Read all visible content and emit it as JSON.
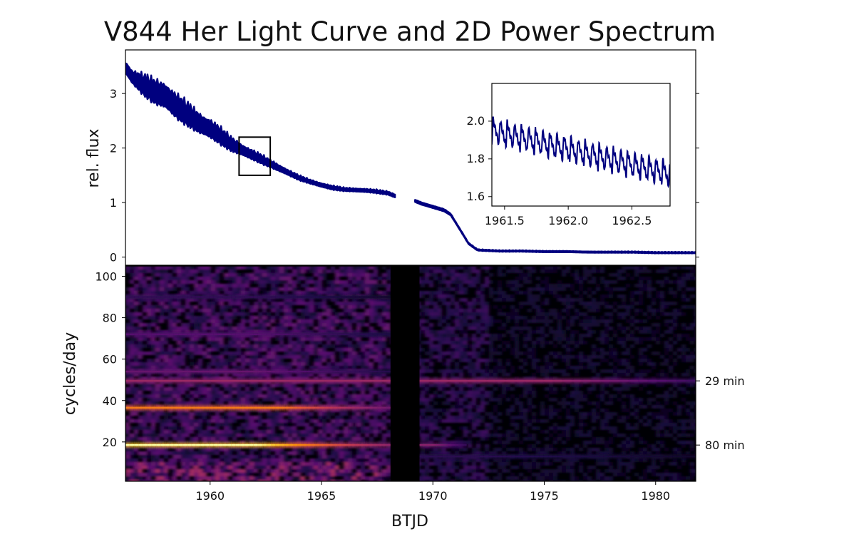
{
  "chart_data": [
    {
      "type": "line",
      "panel": "light-curve",
      "title": "V844 Her Light Curve and 2D Power Spectrum",
      "xlabel": "",
      "ylabel": "rel. flux",
      "xlim": [
        1956.2,
        1981.8
      ],
      "ylim": [
        -0.15,
        3.8
      ],
      "yticks": [
        0,
        1,
        2,
        3
      ],
      "series": [
        {
          "color": "#00007f",
          "x": [
            1956.2,
            1956.5,
            1957.0,
            1957.5,
            1958.0,
            1958.5,
            1959.0,
            1959.5,
            1960.0,
            1960.5,
            1961.0,
            1961.5,
            1962.0,
            1962.5,
            1963.0,
            1963.5,
            1964.0,
            1964.5,
            1965.0,
            1965.5,
            1966.0,
            1966.5,
            1967.0,
            1967.5,
            1968.0,
            1968.3,
            1969.2,
            1969.5,
            1970.0,
            1970.5,
            1970.8,
            1971.0,
            1971.3,
            1971.6,
            1972.0,
            1972.5,
            1973.0,
            1974.0,
            1975.0,
            1976.0,
            1977.0,
            1978.0,
            1979.0,
            1980.0,
            1981.0,
            1981.8
          ],
          "y": [
            3.48,
            3.3,
            3.15,
            3.02,
            2.95,
            2.75,
            2.6,
            2.45,
            2.35,
            2.2,
            2.05,
            1.95,
            1.85,
            1.75,
            1.65,
            1.55,
            1.45,
            1.38,
            1.32,
            1.27,
            1.24,
            1.23,
            1.22,
            1.2,
            1.17,
            1.12,
            1.03,
            0.98,
            0.92,
            0.86,
            0.78,
            0.65,
            0.45,
            0.25,
            0.13,
            0.12,
            0.11,
            0.11,
            0.1,
            0.1,
            0.09,
            0.09,
            0.09,
            0.08,
            0.08,
            0.08
          ],
          "band": [
            0.18,
            0.2,
            0.3,
            0.35,
            0.38,
            0.36,
            0.33,
            0.3,
            0.28,
            0.24,
            0.2,
            0.16,
            0.14,
            0.12,
            0.1,
            0.08,
            0.07,
            0.06,
            0.06,
            0.06,
            0.05,
            0.05,
            0.05,
            0.05,
            0.05,
            0.05,
            0.04,
            0.04,
            0.04,
            0.04,
            0.03,
            0.02,
            0.02,
            0.02,
            0.02,
            0.02,
            0.02,
            0.02,
            0.02,
            0.02,
            0.02,
            0.02,
            0.02,
            0.02,
            0.02,
            0.02
          ]
        }
      ],
      "highlight_box": {
        "x": [
          1961.3,
          1962.7
        ],
        "y": [
          1.5,
          2.2
        ]
      }
    },
    {
      "type": "line",
      "panel": "inset",
      "xlim": [
        1961.4,
        1962.8
      ],
      "ylim": [
        1.55,
        2.2
      ],
      "xticks": [
        1961.5,
        1962.0,
        1962.5
      ],
      "xtick_labels": [
        "1961.5",
        "1962.0",
        "1962.5"
      ],
      "yticks": [
        1.6,
        1.8,
        2.0
      ],
      "yticks_labels": [
        "1.6",
        "1.8",
        "2.0"
      ],
      "series": [
        {
          "color": "#00007f",
          "period_days": 0.0556,
          "trend_x": [
            1961.4,
            1962.8
          ],
          "trend_y": [
            1.95,
            1.72
          ],
          "amplitude": 0.13
        }
      ]
    },
    {
      "type": "heatmap",
      "panel": "power-spectrum",
      "xlabel": "BTJD",
      "ylabel": "cycles/day",
      "xlim": [
        1956.2,
        1981.8
      ],
      "ylim": [
        1,
        105
      ],
      "xticks": [
        1960,
        1965,
        1970,
        1975,
        1980
      ],
      "xtick_labels": [
        "1960",
        "1965",
        "1970",
        "1975",
        "1980"
      ],
      "yticks": [
        20,
        40,
        60,
        80,
        100
      ],
      "ytick_labels": [
        "20",
        "40",
        "60",
        "80",
        "100"
      ],
      "colormap": "inferno",
      "gap": [
        1968.1,
        1969.4
      ],
      "bands": [
        {
          "freq": 18.5,
          "strength": 1.0,
          "x_range": [
            1956.2,
            1968.1
          ],
          "fade_after": 1962.0
        },
        {
          "freq": 18.5,
          "strength": 0.45,
          "x_range": [
            1969.4,
            1971.5
          ],
          "fade_after": 1970.0
        },
        {
          "freq": 36.5,
          "strength": 0.8,
          "x_range": [
            1956.2,
            1968.1
          ],
          "fade_after": 1963.0
        },
        {
          "freq": 49.5,
          "strength": 0.5,
          "x_range": [
            1956.2,
            1981.8
          ],
          "fade_after": 1975.0
        },
        {
          "freq": 54.0,
          "strength": 0.35,
          "x_range": [
            1956.2,
            1968.1
          ],
          "fade_after": 1962.0
        },
        {
          "freq": 72.0,
          "strength": 0.3,
          "x_range": [
            1956.2,
            1968.1
          ],
          "fade_after": 1962.0
        },
        {
          "freq": 90.0,
          "strength": 0.2,
          "x_range": [
            1956.2,
            1968.1
          ],
          "fade_after": 1962.0
        },
        {
          "freq": 13.0,
          "strength": 0.18,
          "x_range": [
            1969.4,
            1981.8
          ],
          "fade_after": 1972.0
        }
      ],
      "annotations": [
        {
          "text": "29 min",
          "freq": 49.5
        },
        {
          "text": "80 min",
          "freq": 18.5
        }
      ]
    }
  ],
  "colors": {
    "line": "#00007f",
    "axes": "#000000",
    "gap": "#000000"
  }
}
